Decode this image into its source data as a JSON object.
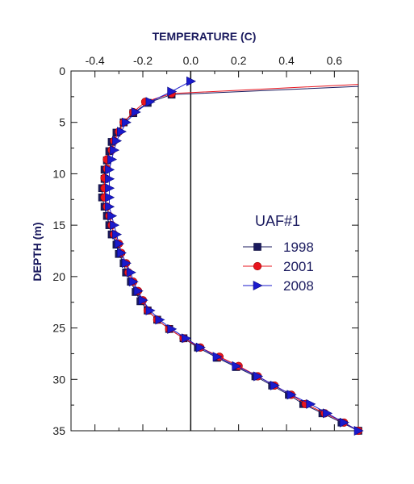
{
  "chart_data": {
    "type": "line",
    "title": "UAF#1",
    "xlabel": "TEMPERATURE (C)",
    "ylabel": "DEPTH (m)",
    "xlim": [
      -0.5,
      0.7
    ],
    "ylim": [
      0,
      35
    ],
    "y_inverted": true,
    "x_axis_position": "top",
    "x_ticks": [
      -0.4,
      -0.2,
      0.0,
      0.2,
      0.4,
      0.6
    ],
    "x_tick_labels": [
      "-0.4",
      "-0.2",
      "0.0",
      "0.2",
      "0.4",
      "0.6"
    ],
    "y_ticks": [
      0,
      5,
      10,
      15,
      20,
      25,
      30,
      35
    ],
    "y_tick_labels": [
      "0",
      "5",
      "10",
      "15",
      "20",
      "25",
      "30",
      "35"
    ],
    "zero_reference_line": 0.0,
    "legend_position": "center-right",
    "series": [
      {
        "name": "1998",
        "color": "#1a1a5e",
        "marker": "square",
        "points": [
          [
            0.7,
            1.5
          ],
          [
            -0.08,
            2.3
          ],
          [
            -0.18,
            3.1
          ],
          [
            -0.24,
            4.1
          ],
          [
            -0.28,
            5.0
          ],
          [
            -0.31,
            6.0
          ],
          [
            -0.33,
            6.9
          ],
          [
            -0.34,
            7.8
          ],
          [
            -0.35,
            8.7
          ],
          [
            -0.36,
            9.6
          ],
          [
            -0.36,
            10.5
          ],
          [
            -0.37,
            11.4
          ],
          [
            -0.37,
            12.3
          ],
          [
            -0.36,
            13.2
          ],
          [
            -0.35,
            14.1
          ],
          [
            -0.34,
            15.0
          ],
          [
            -0.33,
            15.9
          ],
          [
            -0.31,
            16.9
          ],
          [
            -0.3,
            17.8
          ],
          [
            -0.28,
            18.7
          ],
          [
            -0.27,
            19.6
          ],
          [
            -0.25,
            20.5
          ],
          [
            -0.23,
            21.5
          ],
          [
            -0.21,
            22.4
          ],
          [
            -0.18,
            23.3
          ],
          [
            -0.14,
            24.2
          ],
          [
            -0.09,
            25.1
          ],
          [
            -0.03,
            26.0
          ],
          [
            0.03,
            26.9
          ],
          [
            0.11,
            27.9
          ],
          [
            0.19,
            28.8
          ],
          [
            0.27,
            29.7
          ],
          [
            0.34,
            30.6
          ],
          [
            0.41,
            31.5
          ],
          [
            0.47,
            32.4
          ],
          [
            0.55,
            33.3
          ],
          [
            0.63,
            34.2
          ],
          [
            0.7,
            35.0
          ]
        ]
      },
      {
        "name": "2001",
        "color": "#e8141e",
        "marker": "circle",
        "points": [
          [
            0.7,
            1.3
          ],
          [
            -0.08,
            2.2
          ],
          [
            -0.19,
            3.0
          ],
          [
            -0.24,
            4.0
          ],
          [
            -0.28,
            5.0
          ],
          [
            -0.3,
            5.9
          ],
          [
            -0.32,
            6.8
          ],
          [
            -0.33,
            7.7
          ],
          [
            -0.35,
            8.6
          ],
          [
            -0.35,
            9.5
          ],
          [
            -0.36,
            10.4
          ],
          [
            -0.36,
            11.4
          ],
          [
            -0.36,
            12.3
          ],
          [
            -0.35,
            13.2
          ],
          [
            -0.34,
            14.1
          ],
          [
            -0.33,
            15.0
          ],
          [
            -0.32,
            15.9
          ],
          [
            -0.3,
            16.8
          ],
          [
            -0.29,
            17.7
          ],
          [
            -0.27,
            18.7
          ],
          [
            -0.26,
            19.6
          ],
          [
            -0.24,
            20.5
          ],
          [
            -0.22,
            21.4
          ],
          [
            -0.2,
            22.3
          ],
          [
            -0.18,
            23.3
          ],
          [
            -0.14,
            24.2
          ],
          [
            -0.09,
            25.1
          ],
          [
            -0.03,
            26.0
          ],
          [
            0.04,
            26.9
          ],
          [
            0.12,
            27.8
          ],
          [
            0.2,
            28.7
          ],
          [
            0.28,
            29.7
          ],
          [
            0.35,
            30.6
          ],
          [
            0.42,
            31.5
          ],
          [
            0.48,
            32.4
          ],
          [
            0.56,
            33.3
          ],
          [
            0.64,
            34.2
          ],
          [
            0.7,
            35.0
          ]
        ]
      },
      {
        "name": "2008",
        "color": "#1a1acc",
        "marker": "triangle-right",
        "points": [
          [
            0.0,
            1.0
          ],
          [
            -0.08,
            2.0
          ],
          [
            -0.17,
            3.0
          ],
          [
            -0.23,
            4.0
          ],
          [
            -0.27,
            5.0
          ],
          [
            -0.29,
            5.9
          ],
          [
            -0.31,
            6.8
          ],
          [
            -0.32,
            7.7
          ],
          [
            -0.33,
            8.6
          ],
          [
            -0.34,
            9.6
          ],
          [
            -0.34,
            10.5
          ],
          [
            -0.34,
            11.4
          ],
          [
            -0.34,
            12.3
          ],
          [
            -0.34,
            13.2
          ],
          [
            -0.33,
            14.1
          ],
          [
            -0.32,
            15.0
          ],
          [
            -0.31,
            15.9
          ],
          [
            -0.3,
            16.8
          ],
          [
            -0.29,
            17.7
          ],
          [
            -0.27,
            18.7
          ],
          [
            -0.25,
            19.6
          ],
          [
            -0.24,
            20.5
          ],
          [
            -0.22,
            21.4
          ],
          [
            -0.2,
            22.3
          ],
          [
            -0.17,
            23.3
          ],
          [
            -0.13,
            24.2
          ],
          [
            -0.08,
            25.1
          ],
          [
            -0.02,
            26.0
          ],
          [
            0.04,
            26.9
          ],
          [
            0.11,
            27.8
          ],
          [
            0.19,
            28.7
          ],
          [
            0.28,
            29.7
          ],
          [
            0.35,
            30.6
          ],
          [
            0.42,
            31.5
          ],
          [
            0.5,
            32.4
          ],
          [
            0.57,
            33.3
          ],
          [
            0.64,
            34.2
          ],
          [
            0.7,
            35.0
          ]
        ]
      }
    ]
  }
}
